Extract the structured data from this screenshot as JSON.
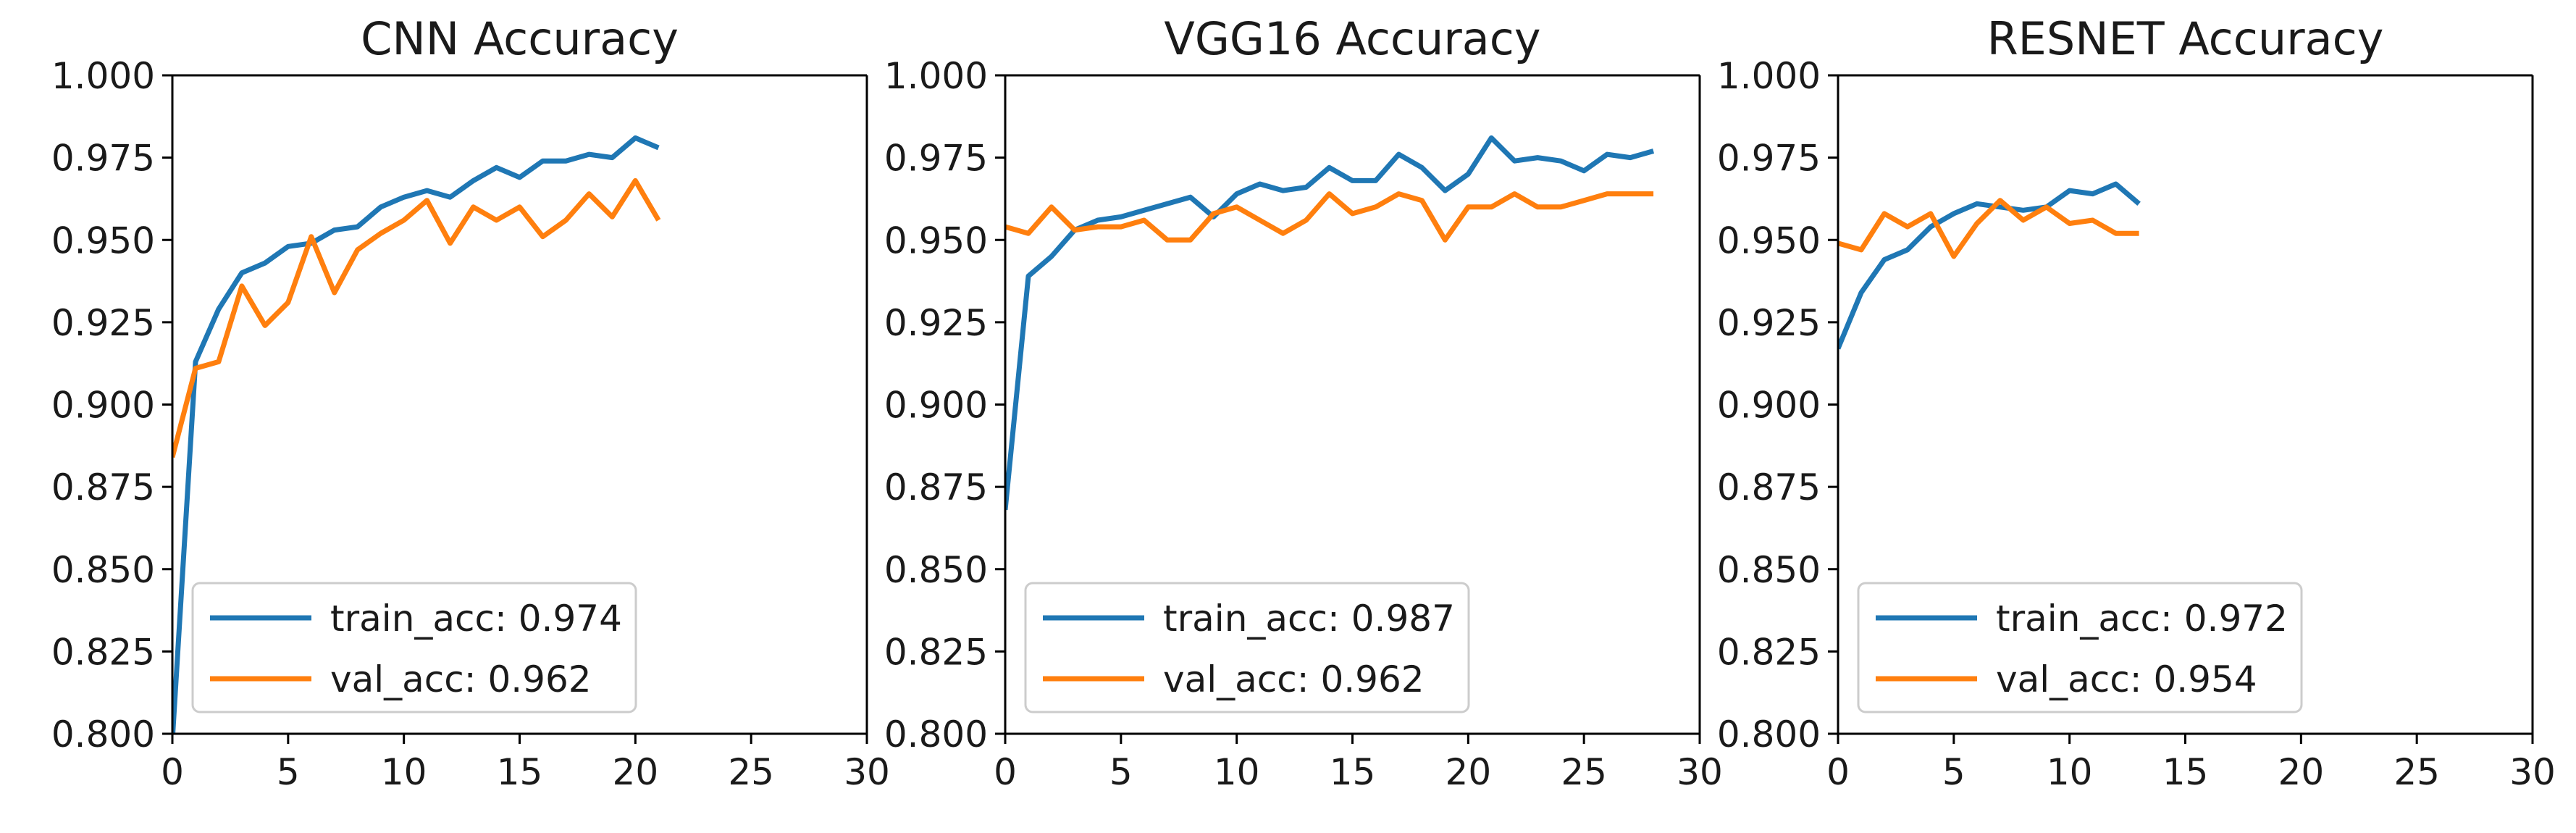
{
  "chart_data": [
    {
      "type": "line",
      "title": "CNN Accuracy",
      "xlabel": "",
      "ylabel": "",
      "xlim": [
        0,
        30
      ],
      "ylim": [
        0.8,
        1.0
      ],
      "xticks": [
        "0",
        "5",
        "10",
        "15",
        "20",
        "25",
        "30"
      ],
      "yticks": [
        "0.800",
        "0.825",
        "0.850",
        "0.875",
        "0.900",
        "0.925",
        "0.950",
        "0.975",
        "1.000"
      ],
      "grid": false,
      "legend_position": "lower-left",
      "series": [
        {
          "name": "train_acc: 0.974",
          "color": "#1f77b4",
          "x": [
            0,
            1,
            2,
            3,
            4,
            5,
            6,
            7,
            8,
            9,
            10,
            11,
            12,
            13,
            14,
            15,
            16,
            17,
            18,
            19,
            20,
            21
          ],
          "y": [
            0.798,
            0.913,
            0.929,
            0.94,
            0.943,
            0.948,
            0.949,
            0.953,
            0.954,
            0.96,
            0.963,
            0.965,
            0.963,
            0.968,
            0.972,
            0.969,
            0.974,
            0.974,
            0.976,
            0.975,
            0.981,
            0.978
          ]
        },
        {
          "name": "val_acc: 0.962",
          "color": "#ff7f0e",
          "x": [
            0,
            1,
            2,
            3,
            4,
            5,
            6,
            7,
            8,
            9,
            10,
            11,
            12,
            13,
            14,
            15,
            16,
            17,
            18,
            19,
            20,
            21
          ],
          "y": [
            0.884,
            0.911,
            0.913,
            0.936,
            0.924,
            0.931,
            0.951,
            0.934,
            0.947,
            0.952,
            0.956,
            0.962,
            0.949,
            0.96,
            0.956,
            0.96,
            0.951,
            0.956,
            0.964,
            0.957,
            0.968,
            0.956
          ]
        }
      ]
    },
    {
      "type": "line",
      "title": "VGG16 Accuracy",
      "xlabel": "",
      "ylabel": "",
      "xlim": [
        0,
        30
      ],
      "ylim": [
        0.8,
        1.0
      ],
      "xticks": [
        "0",
        "5",
        "10",
        "15",
        "20",
        "25",
        "30"
      ],
      "yticks": [
        "0.800",
        "0.825",
        "0.850",
        "0.875",
        "0.900",
        "0.925",
        "0.950",
        "0.975",
        "1.000"
      ],
      "grid": false,
      "legend_position": "lower-left",
      "series": [
        {
          "name": "train_acc: 0.987",
          "color": "#1f77b4",
          "x": [
            0,
            1,
            2,
            3,
            4,
            5,
            6,
            7,
            8,
            9,
            10,
            11,
            12,
            13,
            14,
            15,
            16,
            17,
            18,
            19,
            20,
            21,
            22,
            23,
            24,
            25,
            26,
            27,
            28
          ],
          "y": [
            0.868,
            0.939,
            0.945,
            0.953,
            0.956,
            0.957,
            0.959,
            0.961,
            0.963,
            0.957,
            0.964,
            0.967,
            0.965,
            0.966,
            0.972,
            0.968,
            0.968,
            0.976,
            0.972,
            0.965,
            0.97,
            0.981,
            0.974,
            0.975,
            0.974,
            0.971,
            0.976,
            0.975,
            0.977
          ]
        },
        {
          "name": "val_acc: 0.962",
          "color": "#ff7f0e",
          "x": [
            0,
            1,
            2,
            3,
            4,
            5,
            6,
            7,
            8,
            9,
            10,
            11,
            12,
            13,
            14,
            15,
            16,
            17,
            18,
            19,
            20,
            21,
            22,
            23,
            24,
            25,
            26,
            27,
            28
          ],
          "y": [
            0.954,
            0.952,
            0.96,
            0.953,
            0.954,
            0.954,
            0.956,
            0.95,
            0.95,
            0.958,
            0.96,
            0.956,
            0.952,
            0.956,
            0.964,
            0.958,
            0.96,
            0.964,
            0.962,
            0.95,
            0.96,
            0.96,
            0.964,
            0.96,
            0.96,
            0.962,
            0.964,
            0.964,
            0.964
          ]
        }
      ]
    },
    {
      "type": "line",
      "title": "RESNET Accuracy",
      "xlabel": "",
      "ylabel": "",
      "xlim": [
        0,
        30
      ],
      "ylim": [
        0.8,
        1.0
      ],
      "xticks": [
        "0",
        "5",
        "10",
        "15",
        "20",
        "25",
        "30"
      ],
      "yticks": [
        "0.800",
        "0.825",
        "0.850",
        "0.875",
        "0.900",
        "0.925",
        "0.950",
        "0.975",
        "1.000"
      ],
      "grid": false,
      "legend_position": "lower-left",
      "series": [
        {
          "name": "train_acc: 0.972",
          "color": "#1f77b4",
          "x": [
            0,
            1,
            2,
            3,
            4,
            5,
            6,
            7,
            8,
            9,
            10,
            11,
            12,
            13
          ],
          "y": [
            0.917,
            0.934,
            0.944,
            0.947,
            0.954,
            0.958,
            0.961,
            0.96,
            0.959,
            0.96,
            0.965,
            0.964,
            0.967,
            0.961
          ]
        },
        {
          "name": "val_acc: 0.954",
          "color": "#ff7f0e",
          "x": [
            0,
            1,
            2,
            3,
            4,
            5,
            6,
            7,
            8,
            9,
            10,
            11,
            12,
            13
          ],
          "y": [
            0.949,
            0.947,
            0.958,
            0.954,
            0.958,
            0.945,
            0.955,
            0.962,
            0.956,
            0.96,
            0.955,
            0.956,
            0.952,
            0.952
          ]
        }
      ]
    }
  ]
}
